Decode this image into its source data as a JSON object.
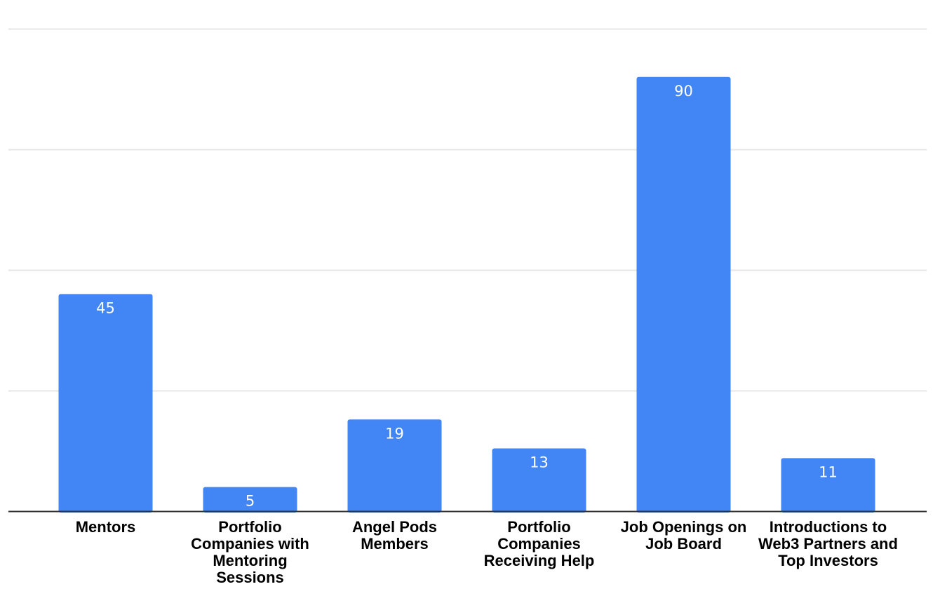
{
  "chart_data": {
    "type": "bar",
    "categories": [
      "Mentors",
      "Portfolio Companies with Mentoring Sessions",
      "Angel Pods Members",
      "Portfolio Companies Receiving Help",
      "Job Openings on Job Board",
      "Introductions to Web3 Partners and Top Investors"
    ],
    "values": [
      45,
      5,
      19,
      13,
      90,
      11
    ],
    "title": "",
    "xlabel": "",
    "ylabel": "",
    "ylim": [
      0,
      100
    ],
    "grid": true,
    "legend": "none",
    "colors": {
      "bar": "#4285f4",
      "grid": "#e6e6e6",
      "axis": "#333333",
      "label": "#000000",
      "data_label": "#ffffff"
    }
  }
}
